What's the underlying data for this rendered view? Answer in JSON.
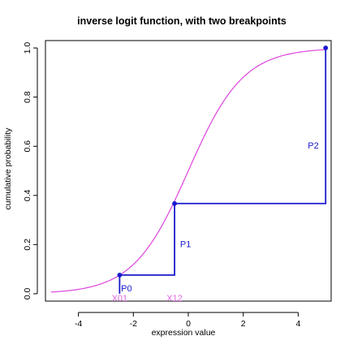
{
  "chart_data": {
    "type": "line",
    "title": "inverse logit function, with two breakpoints",
    "xlabel": "expression value",
    "ylabel": "cumulative probability",
    "xlim": [
      -5.2,
      5.2
    ],
    "ylim": [
      -0.03,
      1.03
    ],
    "x_ticks": [
      -4,
      -2,
      0,
      2,
      4
    ],
    "y_ticks": [
      0.0,
      0.2,
      0.4,
      0.6,
      0.8,
      1.0
    ],
    "x_tick_labels": [
      "-4",
      "-2",
      "0",
      "2",
      "4"
    ],
    "y_tick_labels": [
      "0.0",
      "0.2",
      "0.4",
      "0.6",
      "0.8",
      "1.0"
    ],
    "series": [
      {
        "kind": "curve",
        "function": "inverse_logit",
        "domain": [
          -5,
          5
        ],
        "color": "#dd44dd"
      },
      {
        "kind": "step",
        "color": "#1a1acc",
        "points": [
          [
            -2.5,
            0.0
          ],
          [
            -2.5,
            0.076
          ],
          [
            -0.5,
            0.076
          ],
          [
            -0.5,
            0.367
          ],
          [
            5.0,
            0.367
          ],
          [
            5.0,
            1.0
          ]
        ],
        "markers": [
          [
            -2.5,
            0.076
          ],
          [
            -0.5,
            0.367
          ],
          [
            5.0,
            1.0
          ]
        ]
      }
    ],
    "annotations": [
      {
        "text": "P0",
        "x": -2.25,
        "y": 0.02,
        "color": "#1a1acc"
      },
      {
        "text": "P1",
        "x": -0.1,
        "y": 0.2,
        "color": "#1a1acc"
      },
      {
        "text": "P2",
        "x": 4.55,
        "y": 0.6,
        "color": "#1a1acc"
      },
      {
        "text": "X01",
        "x": -2.5,
        "y": -0.02,
        "color": "#dd66dd"
      },
      {
        "text": "X12",
        "x": -0.5,
        "y": -0.02,
        "color": "#dd66dd"
      }
    ]
  }
}
